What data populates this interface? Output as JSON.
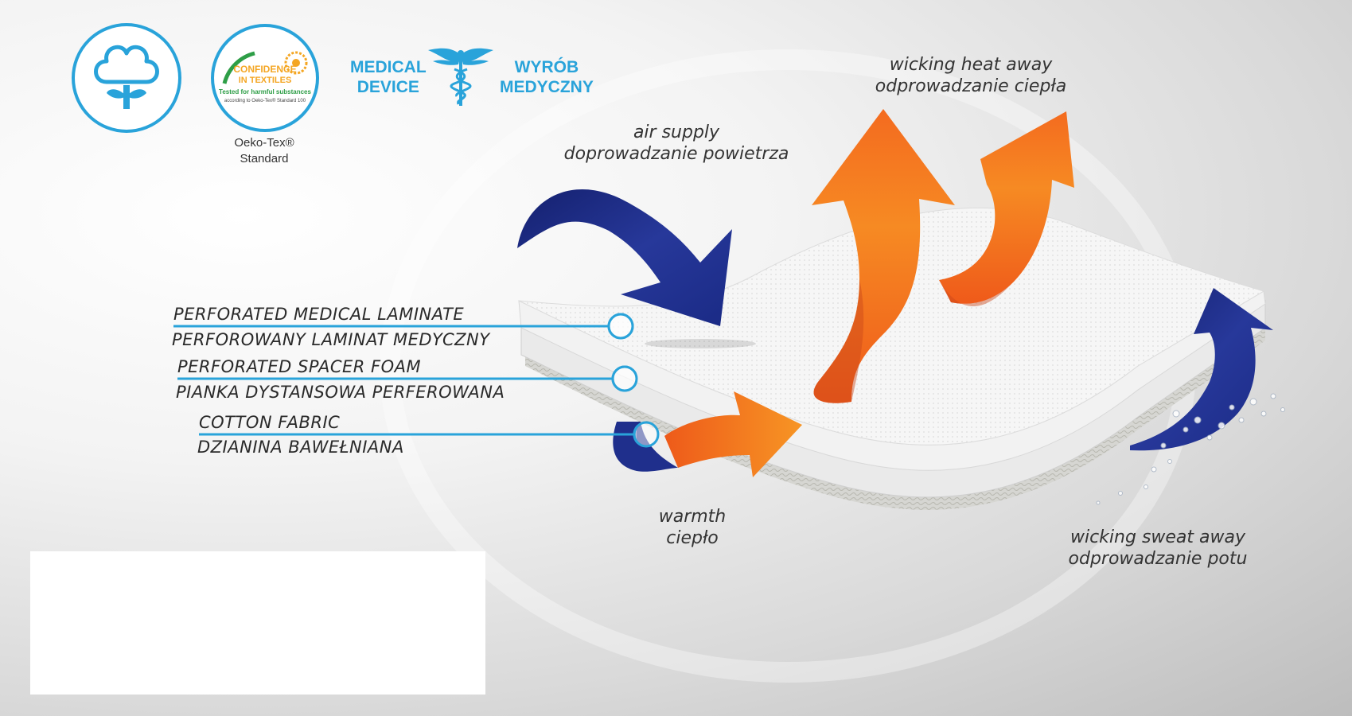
{
  "badges": {
    "cotton_icon": "cotton-flower-icon",
    "oekotex": {
      "line1": "CONFIDENCE",
      "line2": "IN TEXTILES",
      "line3": "Tested for harmful substances",
      "line4": "according to Oeko-Tex® Standard 100",
      "caption_line1": "Oeko-Tex®",
      "caption_line2": "Standard"
    },
    "medical": {
      "left_line1": "MEDICAL",
      "left_line2": "DEVICE",
      "right_line1": "WYRÓB",
      "right_line2": "MEDYCZNY",
      "icon": "caduceus-icon"
    }
  },
  "captions": {
    "air_supply": {
      "line1": "air supply",
      "line2": "doprowadzanie powietrza"
    },
    "wicking_heat": {
      "line1": "wicking heat away",
      "line2": "odprowadzanie ciepła"
    },
    "warmth": {
      "line1": "warmth",
      "line2": "ciepło"
    },
    "wicking_sweat": {
      "line1": "wicking sweat away",
      "line2": "odprowadzanie potu"
    }
  },
  "layers": [
    {
      "en": "PERFORATED MEDICAL LAMINATE",
      "pl": "PERFOROWANY LAMINAT MEDYCZNY"
    },
    {
      "en": "PERFORATED SPACER FOAM",
      "pl": "PIANKA DYSTANSOWA PERFEROWANA"
    },
    {
      "en": "COTTON FABRIC",
      "pl": "DZIANINA BAWEŁNIANA"
    }
  ],
  "colors": {
    "accent_blue": "#29a3da",
    "arrow_navy": "#1f2f8c",
    "arrow_orange": "#f47a20",
    "text_dark": "#333333"
  }
}
